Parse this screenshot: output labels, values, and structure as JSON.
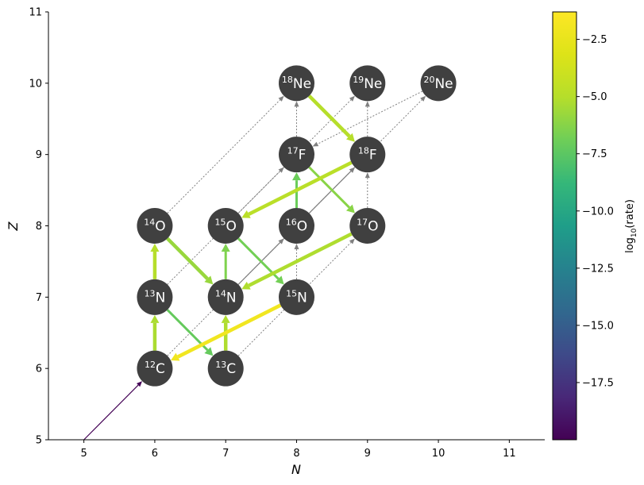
{
  "chart_data": {
    "type": "network",
    "xlabel": "N",
    "ylabel": "Z",
    "xlim": [
      4.5,
      11.5
    ],
    "ylim": [
      5,
      11
    ],
    "xticks": [
      "5",
      "6",
      "7",
      "8",
      "9",
      "10",
      "11"
    ],
    "yticks": [
      "5",
      "6",
      "7",
      "8",
      "9",
      "10",
      "11"
    ],
    "grid": false,
    "nuclei": [
      {
        "mass": "12",
        "symbol": "C",
        "n": 6,
        "z": 6
      },
      {
        "mass": "13",
        "symbol": "C",
        "n": 7,
        "z": 6
      },
      {
        "mass": "13",
        "symbol": "N",
        "n": 6,
        "z": 7
      },
      {
        "mass": "14",
        "symbol": "N",
        "n": 7,
        "z": 7
      },
      {
        "mass": "15",
        "symbol": "N",
        "n": 8,
        "z": 7
      },
      {
        "mass": "14",
        "symbol": "O",
        "n": 6,
        "z": 8
      },
      {
        "mass": "15",
        "symbol": "O",
        "n": 7,
        "z": 8
      },
      {
        "mass": "16",
        "symbol": "O",
        "n": 8,
        "z": 8
      },
      {
        "mass": "17",
        "symbol": "O",
        "n": 9,
        "z": 8
      },
      {
        "mass": "17",
        "symbol": "F",
        "n": 8,
        "z": 9
      },
      {
        "mass": "18",
        "symbol": "F",
        "n": 9,
        "z": 9
      },
      {
        "mass": "18",
        "symbol": "Ne",
        "n": 8,
        "z": 10
      },
      {
        "mass": "19",
        "symbol": "Ne",
        "n": 9,
        "z": 10
      },
      {
        "mass": "20",
        "symbol": "Ne",
        "n": 10,
        "z": 10
      }
    ],
    "strong_links": [
      {
        "from": [
          5,
          5
        ],
        "to": [
          6,
          6
        ],
        "log_rate": -19.9
      },
      {
        "from": [
          6,
          6
        ],
        "to": [
          6,
          7
        ],
        "log_rate": -5.3
      },
      {
        "from": [
          6,
          7
        ],
        "to": [
          7,
          6
        ],
        "log_rate": -7.2
      },
      {
        "from": [
          7,
          6
        ],
        "to": [
          7,
          7
        ],
        "log_rate": -5.2
      },
      {
        "from": [
          7,
          7
        ],
        "to": [
          7,
          8
        ],
        "log_rate": -6.5
      },
      {
        "from": [
          6,
          7
        ],
        "to": [
          6,
          8
        ],
        "log_rate": -5.0
      },
      {
        "from": [
          6,
          8
        ],
        "to": [
          7,
          7
        ],
        "log_rate": -5.8
      },
      {
        "from": [
          7,
          8
        ],
        "to": [
          8,
          7
        ],
        "log_rate": -6.8
      },
      {
        "from": [
          8,
          7
        ],
        "to": [
          6,
          6
        ],
        "log_rate": -2.0
      },
      {
        "from": [
          8,
          8
        ],
        "to": [
          8,
          9
        ],
        "log_rate": -7.0
      },
      {
        "from": [
          8,
          9
        ],
        "to": [
          9,
          8
        ],
        "log_rate": -6.2
      },
      {
        "from": [
          9,
          8
        ],
        "to": [
          7,
          7
        ],
        "log_rate": -5.2
      },
      {
        "from": [
          9,
          9
        ],
        "to": [
          7,
          8
        ],
        "log_rate": -4.8
      },
      {
        "from": [
          8,
          10
        ],
        "to": [
          9,
          9
        ],
        "log_rate": -5.0
      }
    ],
    "weak_links": [
      {
        "from": [
          6,
          6
        ],
        "to": [
          8,
          8
        ]
      },
      {
        "from": [
          7,
          7
        ],
        "to": [
          9,
          9
        ]
      },
      {
        "from": [
          8,
          8
        ],
        "to": [
          10,
          10
        ]
      },
      {
        "from": [
          6,
          8
        ],
        "to": [
          8,
          10
        ]
      },
      {
        "from": [
          7,
          8
        ],
        "to": [
          9,
          10
        ]
      },
      {
        "from": [
          6,
          7
        ],
        "to": [
          8,
          9
        ]
      },
      {
        "from": [
          7,
          6
        ],
        "to": [
          9,
          8
        ]
      },
      {
        "from": [
          8,
          7
        ],
        "to": [
          8,
          8
        ]
      },
      {
        "from": [
          8,
          9
        ],
        "to": [
          8,
          10
        ]
      },
      {
        "from": [
          9,
          9
        ],
        "to": [
          9,
          10
        ]
      },
      {
        "from": [
          9,
          8
        ],
        "to": [
          9,
          9
        ]
      },
      {
        "from": [
          10,
          10
        ],
        "to": [
          8,
          9
        ]
      }
    ],
    "solid_gray_links": [
      {
        "from": [
          7,
          7
        ],
        "to": [
          8,
          8
        ]
      },
      {
        "from": [
          8,
          8
        ],
        "to": [
          9,
          9
        ]
      }
    ],
    "colorbar": {
      "label": "log₁₀(rate)",
      "label_base": "log",
      "label_sub": "10",
      "label_rest": "(rate)",
      "min": -20,
      "max": -1.3,
      "ticks": [
        "−2.5",
        "−5.0",
        "−7.5",
        "−10.0",
        "−12.5",
        "−15.0",
        "−17.5"
      ],
      "tick_values": [
        -2.5,
        -5.0,
        -7.5,
        -10.0,
        -12.5,
        -15.0,
        -17.5
      ],
      "colormap": "viridis"
    }
  },
  "colors": {
    "node_fill": "#404040",
    "node_text": "#ffffff",
    "weak_link": "#808080"
  }
}
